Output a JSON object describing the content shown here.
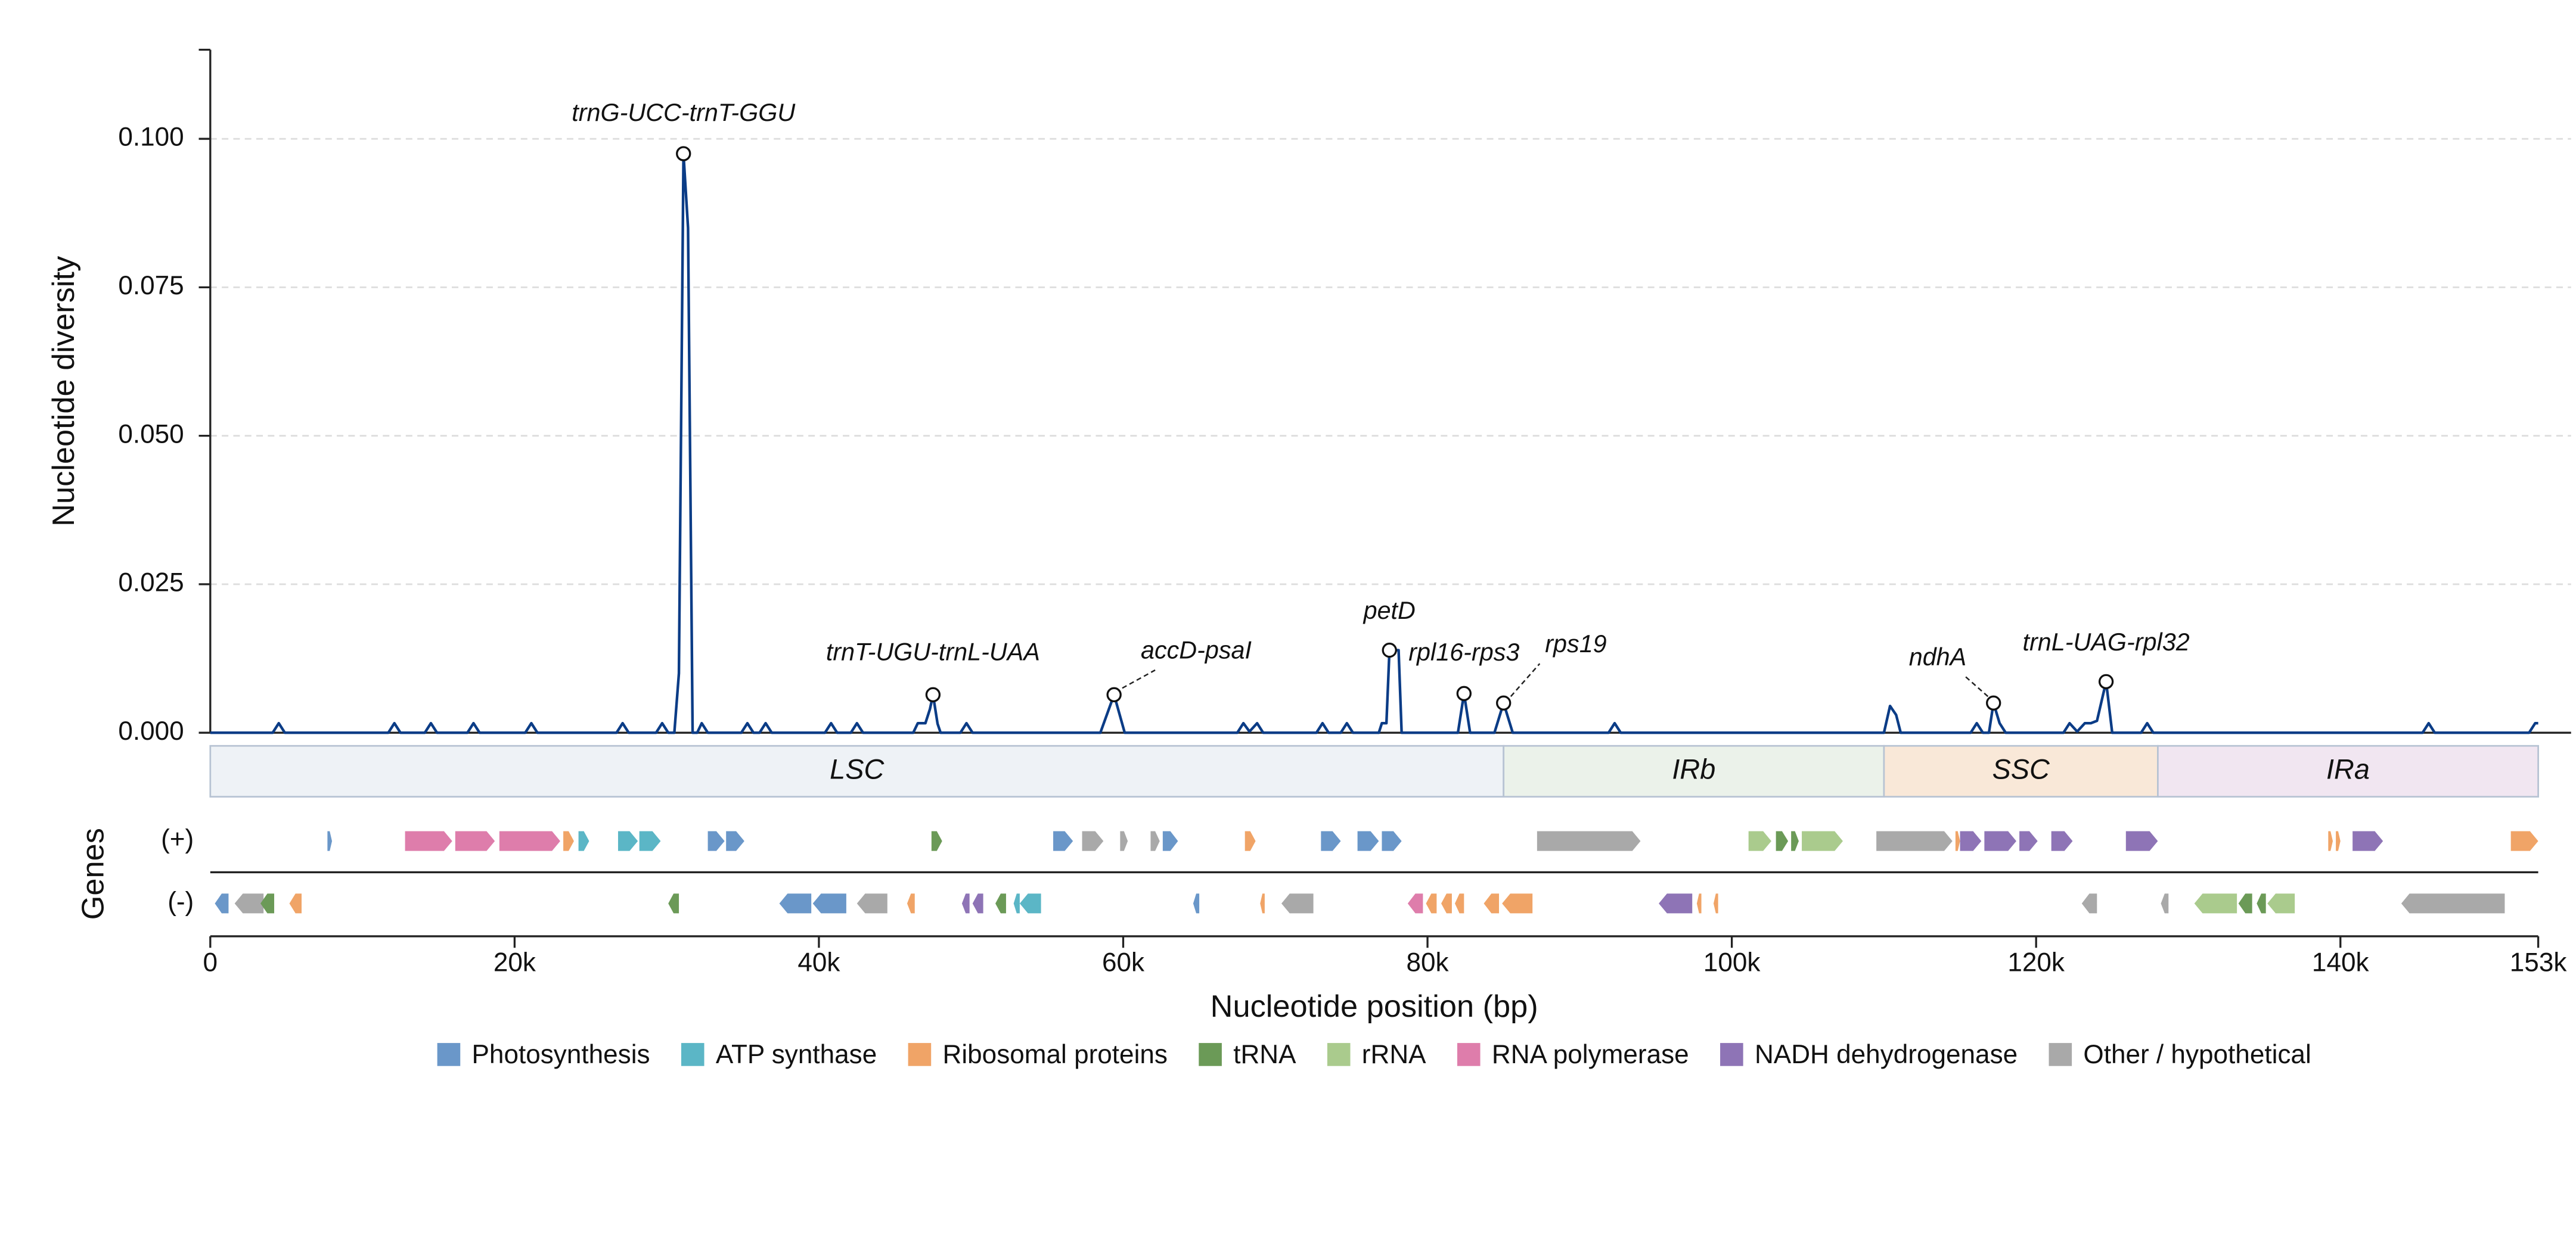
{
  "chart_data": {
    "type": "line",
    "ylabel": "Nucleotide diversity",
    "xlabel": "Nucleotide position (bp)",
    "genes_label": "Genes",
    "color": "#0b3c86",
    "grid": true,
    "xlim": [
      0,
      153000
    ],
    "ylim": [
      0,
      0.115
    ],
    "xticks": [
      0,
      {
        "value": 20000,
        "label": "20k"
      },
      {
        "value": 40000,
        "label": "40k"
      },
      {
        "value": 60000,
        "label": "60k"
      },
      {
        "value": 80000,
        "label": "80k"
      },
      {
        "value": 100000,
        "label": "100k"
      },
      {
        "value": 120000,
        "label": "120k"
      },
      {
        "value": 140000,
        "label": "140k"
      },
      {
        "value": 153000,
        "label": "153k"
      }
    ],
    "yticks": [
      {
        "value": 0,
        "label": "0.000"
      },
      {
        "value": 0.025,
        "label": "0.025"
      },
      {
        "value": 0.05,
        "label": "0.050"
      },
      {
        "value": 0.075,
        "label": "0.075"
      },
      {
        "value": 0.1,
        "label": "0.100"
      }
    ],
    "x": [
      0,
      4100,
      4500,
      4900,
      11700,
      12100,
      12500,
      14100,
      14500,
      14900,
      16900,
      17300,
      17700,
      20700,
      21100,
      21500,
      26700,
      27100,
      27500,
      29300,
      29700,
      30100,
      30500,
      30800,
      31100,
      31400,
      31700,
      32000,
      32300,
      32700,
      34900,
      35300,
      35700,
      36100,
      36500,
      36900,
      40400,
      40800,
      41200,
      42100,
      42500,
      42900,
      46200,
      46500,
      47000,
      47300,
      47500,
      47800,
      48000,
      49300,
      49700,
      50100,
      58500,
      59400,
      60100,
      67500,
      67900,
      68300,
      68800,
      69200,
      72700,
      73100,
      73500,
      74300,
      74700,
      75100,
      76800,
      77000,
      77300,
      77500,
      78100,
      78300,
      82000,
      82400,
      82800,
      84400,
      85000,
      85600,
      91900,
      92300,
      92700,
      110000,
      110400,
      110800,
      111100,
      115700,
      116100,
      116500,
      116900,
      117200,
      117600,
      118000,
      121800,
      122200,
      122700,
      123200,
      123600,
      124000,
      124600,
      125000,
      126900,
      127300,
      127700,
      145400,
      145800,
      146200,
      152400,
      152800,
      153000
    ],
    "values": [
      0,
      0,
      0.0016,
      0,
      0,
      0.0016,
      0,
      0,
      0.0016,
      0,
      0,
      0.0016,
      0,
      0,
      0.0016,
      0,
      0,
      0.0016,
      0,
      0,
      0.0016,
      0,
      0,
      0.01,
      0.0975,
      0.085,
      0,
      0,
      0.0016,
      0,
      0,
      0.0016,
      0,
      0,
      0.0016,
      0,
      0,
      0.0016,
      0,
      0,
      0.0016,
      0,
      0,
      0.0016,
      0.0016,
      0.004,
      0.0064,
      0.0015,
      0,
      0,
      0.0016,
      0,
      0,
      0.0064,
      0,
      0,
      0.0016,
      0.0002,
      0.0016,
      0,
      0,
      0.0016,
      0,
      0,
      0.0016,
      0,
      0,
      0.0016,
      0.0016,
      0.0139,
      0.0139,
      0,
      0,
      0.0066,
      0,
      0,
      0.005,
      0,
      0,
      0.0016,
      0,
      0,
      0.0045,
      0.003,
      0,
      0,
      0.0016,
      0,
      0,
      0.005,
      0.0016,
      0,
      0,
      0.0016,
      0.0002,
      0.0016,
      0.0016,
      0.002,
      0.0086,
      0,
      0,
      0.0016,
      0,
      0,
      0.0016,
      0,
      0,
      0.0016,
      0.0016
    ],
    "annotations": [
      {
        "text": "trnG-UCC-trnT-GGU",
        "x": 31100,
        "y": 0.0975
      },
      {
        "text": "trnT-UGU-trnL-UAA",
        "x": 47500,
        "y": 0.0064
      },
      {
        "text": "accD-psaI",
        "x": 59400,
        "y": 0.0064
      },
      {
        "text": "petD",
        "x": 77500,
        "y": 0.0139
      },
      {
        "text": "rpl16-rps3",
        "x": 82400,
        "y": 0.0066
      },
      {
        "text": "rps19",
        "x": 85000,
        "y": 0.005
      },
      {
        "text": "ndhA",
        "x": 117200,
        "y": 0.005
      },
      {
        "text": "trnL-UAG-rpl32",
        "x": 124600,
        "y": 0.0086
      }
    ],
    "regions": [
      {
        "name": "LSC",
        "start": 0,
        "end": 85000,
        "color": "#eef2f6"
      },
      {
        "name": "IRb",
        "start": 85000,
        "end": 110000,
        "color": "#ebf2ea"
      },
      {
        "name": "SSC",
        "start": 110000,
        "end": 128000,
        "color": "#f9e8d8"
      },
      {
        "name": "IRa",
        "start": 128000,
        "end": 153000,
        "color": "#f1e6f1"
      }
    ],
    "gene_categories": [
      {
        "name": "Photosynthesis",
        "color": "#6a97c9"
      },
      {
        "name": "ATP synthase",
        "color": "#5bb6c6"
      },
      {
        "name": "Ribosomal proteins",
        "color": "#f0a467"
      },
      {
        "name": "tRNA",
        "color": "#6b9a57"
      },
      {
        "name": "rRNA",
        "color": "#aacb8d"
      },
      {
        "name": "RNA polymerase",
        "color": "#de7dab"
      },
      {
        "name": "NADH dehydrogenase",
        "color": "#8e74b6"
      },
      {
        "name": "Other / hypothetical",
        "color": "#a9a9a9"
      }
    ],
    "gene_tracks": [
      {
        "label": "(+)",
        "genes": [
          {
            "start": 7700,
            "end": 8000,
            "category": "Photosynthesis"
          },
          {
            "start": 12800,
            "end": 15900,
            "category": "RNA polymerase"
          },
          {
            "start": 16100,
            "end": 18700,
            "category": "RNA polymerase"
          },
          {
            "start": 19000,
            "end": 23000,
            "category": "RNA polymerase"
          },
          {
            "start": 23200,
            "end": 23900,
            "category": "Ribosomal proteins"
          },
          {
            "start": 24200,
            "end": 24900,
            "category": "ATP synthase"
          },
          {
            "start": 26800,
            "end": 28100,
            "category": "ATP synthase"
          },
          {
            "start": 28200,
            "end": 29600,
            "category": "ATP synthase"
          },
          {
            "start": 32700,
            "end": 33800,
            "category": "Photosynthesis"
          },
          {
            "start": 33900,
            "end": 35100,
            "category": "Photosynthesis"
          },
          {
            "start": 47400,
            "end": 48100,
            "category": "tRNA"
          },
          {
            "start": 55400,
            "end": 56700,
            "category": "Photosynthesis"
          },
          {
            "start": 57300,
            "end": 58700,
            "category": "Other / hypothetical"
          },
          {
            "start": 59800,
            "end": 60300,
            "category": "Other / hypothetical"
          },
          {
            "start": 61800,
            "end": 62400,
            "category": "Other / hypothetical"
          },
          {
            "start": 62600,
            "end": 63600,
            "category": "Photosynthesis"
          },
          {
            "start": 68000,
            "end": 68700,
            "category": "Ribosomal proteins"
          },
          {
            "start": 73000,
            "end": 74300,
            "category": "Photosynthesis"
          },
          {
            "start": 75400,
            "end": 76800,
            "category": "Photosynthesis"
          },
          {
            "start": 77000,
            "end": 78300,
            "category": "Photosynthesis"
          },
          {
            "start": 87200,
            "end": 94000,
            "category": "Other / hypothetical"
          },
          {
            "start": 101100,
            "end": 102600,
            "category": "rRNA"
          },
          {
            "start": 102900,
            "end": 103700,
            "category": "tRNA"
          },
          {
            "start": 103900,
            "end": 104400,
            "category": "tRNA"
          },
          {
            "start": 104600,
            "end": 107300,
            "category": "rRNA"
          },
          {
            "start": 109500,
            "end": 114500,
            "category": "Other / hypothetical"
          },
          {
            "start": 114700,
            "end": 115000,
            "category": "Ribosomal proteins"
          },
          {
            "start": 115000,
            "end": 116400,
            "category": "NADH dehydrogenase"
          },
          {
            "start": 116600,
            "end": 118700,
            "category": "NADH dehydrogenase"
          },
          {
            "start": 118900,
            "end": 120100,
            "category": "NADH dehydrogenase"
          },
          {
            "start": 121000,
            "end": 122400,
            "category": "NADH dehydrogenase"
          },
          {
            "start": 125900,
            "end": 128000,
            "category": "NADH dehydrogenase"
          },
          {
            "start": 139200,
            "end": 139500,
            "category": "Ribosomal proteins"
          },
          {
            "start": 139700,
            "end": 140000,
            "category": "Ribosomal proteins"
          },
          {
            "start": 140800,
            "end": 142800,
            "category": "NADH dehydrogenase"
          },
          {
            "start": 151200,
            "end": 153000,
            "category": "Ribosomal proteins"
          }
        ]
      },
      {
        "label": "(-)",
        "genes": [
          {
            "start": 300,
            "end": 1200,
            "category": "Photosynthesis"
          },
          {
            "start": 1600,
            "end": 3500,
            "category": "Other / hypothetical"
          },
          {
            "start": 3300,
            "end": 4200,
            "category": "tRNA"
          },
          {
            "start": 5200,
            "end": 6000,
            "category": "Ribosomal proteins"
          },
          {
            "start": 30100,
            "end": 30800,
            "category": "tRNA"
          },
          {
            "start": 37400,
            "end": 39500,
            "category": "Photosynthesis"
          },
          {
            "start": 39600,
            "end": 41800,
            "category": "Photosynthesis"
          },
          {
            "start": 42500,
            "end": 44500,
            "category": "Other / hypothetical"
          },
          {
            "start": 45800,
            "end": 46300,
            "category": "Ribosomal proteins"
          },
          {
            "start": 49400,
            "end": 49900,
            "category": "NADH dehydrogenase"
          },
          {
            "start": 50100,
            "end": 50800,
            "category": "NADH dehydrogenase"
          },
          {
            "start": 51600,
            "end": 52300,
            "category": "tRNA"
          },
          {
            "start": 52800,
            "end": 53200,
            "category": "ATP synthase"
          },
          {
            "start": 53200,
            "end": 54600,
            "category": "ATP synthase"
          },
          {
            "start": 64600,
            "end": 65000,
            "category": "Photosynthesis"
          },
          {
            "start": 69000,
            "end": 69300,
            "category": "Ribosomal proteins"
          },
          {
            "start": 70400,
            "end": 72500,
            "category": "Other / hypothetical"
          },
          {
            "start": 78700,
            "end": 79700,
            "category": "RNA polymerase"
          },
          {
            "start": 79900,
            "end": 80600,
            "category": "Ribosomal proteins"
          },
          {
            "start": 80900,
            "end": 81600,
            "category": "Ribosomal proteins"
          },
          {
            "start": 81800,
            "end": 82400,
            "category": "Ribosomal proteins"
          },
          {
            "start": 83700,
            "end": 84700,
            "category": "Ribosomal proteins"
          },
          {
            "start": 84900,
            "end": 86900,
            "category": "Ribosomal proteins"
          },
          {
            "start": 95200,
            "end": 97400,
            "category": "NADH dehydrogenase"
          },
          {
            "start": 97700,
            "end": 98000,
            "category": "Ribosomal proteins"
          },
          {
            "start": 98800,
            "end": 99100,
            "category": "Ribosomal proteins"
          },
          {
            "start": 123000,
            "end": 124000,
            "category": "Other / hypothetical"
          },
          {
            "start": 128200,
            "end": 128700,
            "category": "Other / hypothetical"
          },
          {
            "start": 130400,
            "end": 133200,
            "category": "rRNA"
          },
          {
            "start": 133300,
            "end": 134200,
            "category": "tRNA"
          },
          {
            "start": 134500,
            "end": 135100,
            "category": "tRNA"
          },
          {
            "start": 135200,
            "end": 137000,
            "category": "rRNA"
          },
          {
            "start": 144000,
            "end": 150800,
            "category": "Other / hypothetical"
          }
        ]
      }
    ]
  }
}
